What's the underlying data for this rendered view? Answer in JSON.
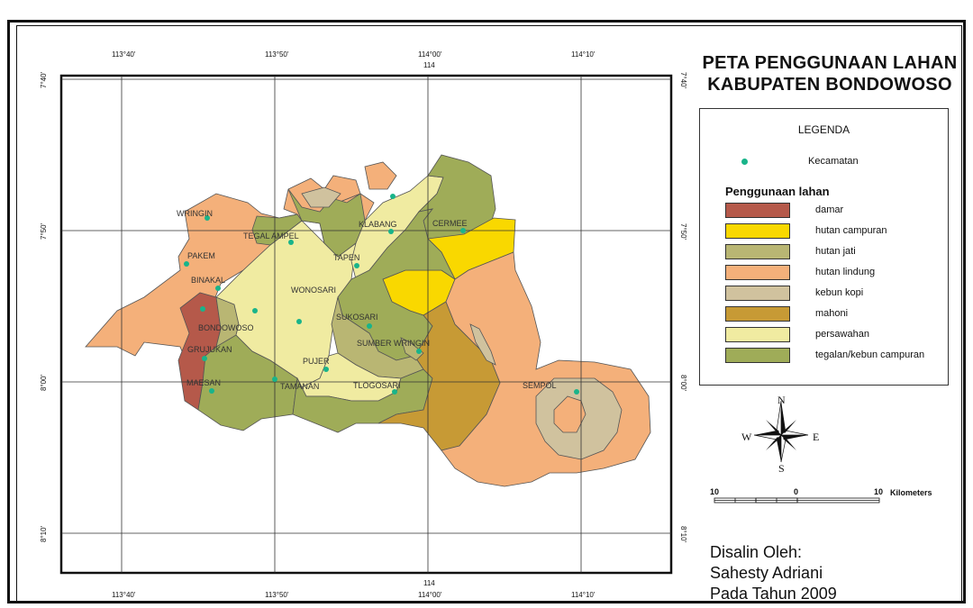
{
  "map": {
    "title_line1": "PETA PENGGUNAAN LAHAN",
    "title_line2": "KABUPATEN BONDOWOSO",
    "top_coords": [
      "113°40'",
      "113°50'",
      "114°00'",
      "114°10'"
    ],
    "top_center": "114",
    "bottom_coords": [
      "113°40'",
      "113°50'",
      "114°00'",
      "114°10'"
    ],
    "bottom_center": "114",
    "left_coords": [
      "7°40'",
      "7°50'",
      "8°00'",
      "8°10'"
    ],
    "right_coords": [
      "7°40'",
      "7°50'",
      "8°00'",
      "8°10'"
    ],
    "districts": [
      "WRINGIN",
      "TEGAL AMPEL",
      "KLABANG",
      "CERMEE",
      "PAKEM",
      "TAPEN",
      "BINAKAL",
      "WONOSARI",
      "SUKOSARI",
      "BONDOWOSO",
      "SUMBER WRINGIN",
      "GRUJUKAN",
      "PUJER",
      "MAESAN",
      "TAMANAN",
      "TLOGOSARI",
      "SEMPOL"
    ]
  },
  "legend": {
    "title": "LEGENDA",
    "kecamatan_label": "Kecamatan",
    "landuse_title": "Penggunaan lahan",
    "items": [
      {
        "label": "damar",
        "color": "#b5594a"
      },
      {
        "label": "hutan campuran",
        "color": "#f9d800"
      },
      {
        "label": "hutan jati",
        "color": "#b9b673"
      },
      {
        "label": "hutan lindung",
        "color": "#f4b07a"
      },
      {
        "label": "kebun kopi",
        "color": "#d0c29e"
      },
      {
        "label": "mahoni",
        "color": "#c79a35"
      },
      {
        "label": "persawahan",
        "color": "#f0eba1"
      },
      {
        "label": "tegalan/kebun campuran",
        "color": "#9fac58"
      }
    ],
    "kecamatan_color": "#19b48a"
  },
  "compass": {
    "n": "N",
    "s": "S",
    "e": "E",
    "w": "W"
  },
  "scale": {
    "left": "10",
    "mid": "0",
    "right": "10",
    "unit": "Kilometers"
  },
  "credit": {
    "line1": "Disalin Oleh:",
    "line2": "Sahesty Adriani",
    "line3": "Pada Tahun 2009"
  }
}
